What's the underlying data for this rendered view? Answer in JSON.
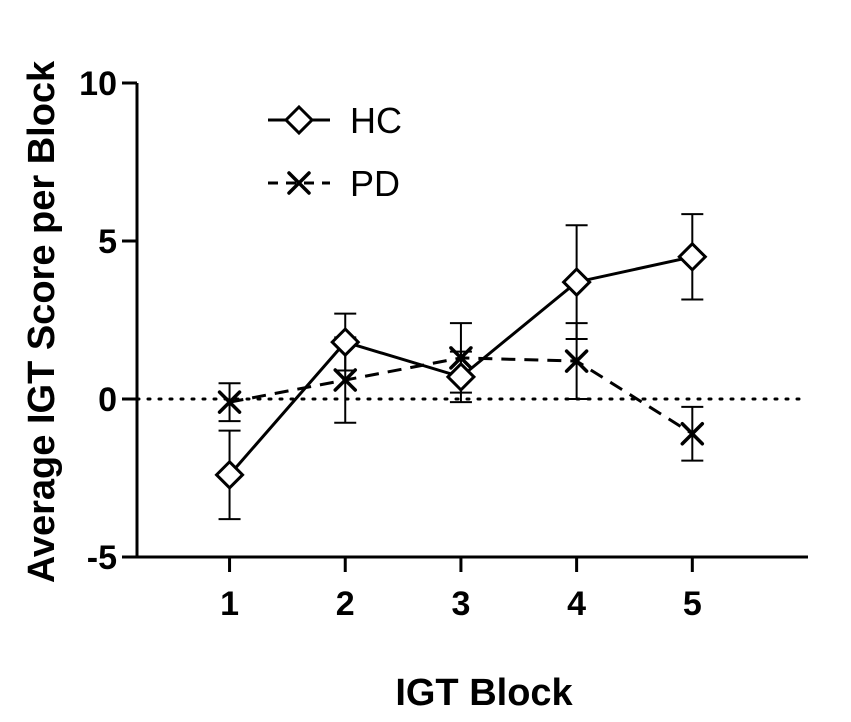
{
  "chart_data": {
    "type": "line",
    "title": "",
    "xlabel": "IGT Block",
    "ylabel": "Average IGT Score per Block",
    "x": [
      1,
      2,
      3,
      4,
      5
    ],
    "x_tick_labels": [
      "1",
      "2",
      "3",
      "4",
      "5"
    ],
    "y_tick_labels": [
      "10",
      "5",
      "0",
      "-5"
    ],
    "y_ticks": [
      10,
      5,
      0,
      -5
    ],
    "ylim": [
      -5,
      10
    ],
    "xlim": [
      0.2,
      6.0
    ],
    "reference_line": {
      "y": 0,
      "style": "dotted"
    },
    "grid": false,
    "legend_position": "top-left",
    "series": [
      {
        "name": "HC",
        "marker": "diamond",
        "line_style": "solid",
        "values": [
          -2.4,
          1.8,
          0.7,
          3.7,
          4.5
        ],
        "error": [
          1.4,
          0.9,
          0.8,
          1.8,
          1.35
        ]
      },
      {
        "name": "PD",
        "marker": "x",
        "line_style": "dashed",
        "values": [
          -0.1,
          0.6,
          1.3,
          1.2,
          -1.1
        ],
        "error": [
          0.6,
          1.35,
          1.1,
          1.2,
          0.85
        ]
      }
    ]
  }
}
